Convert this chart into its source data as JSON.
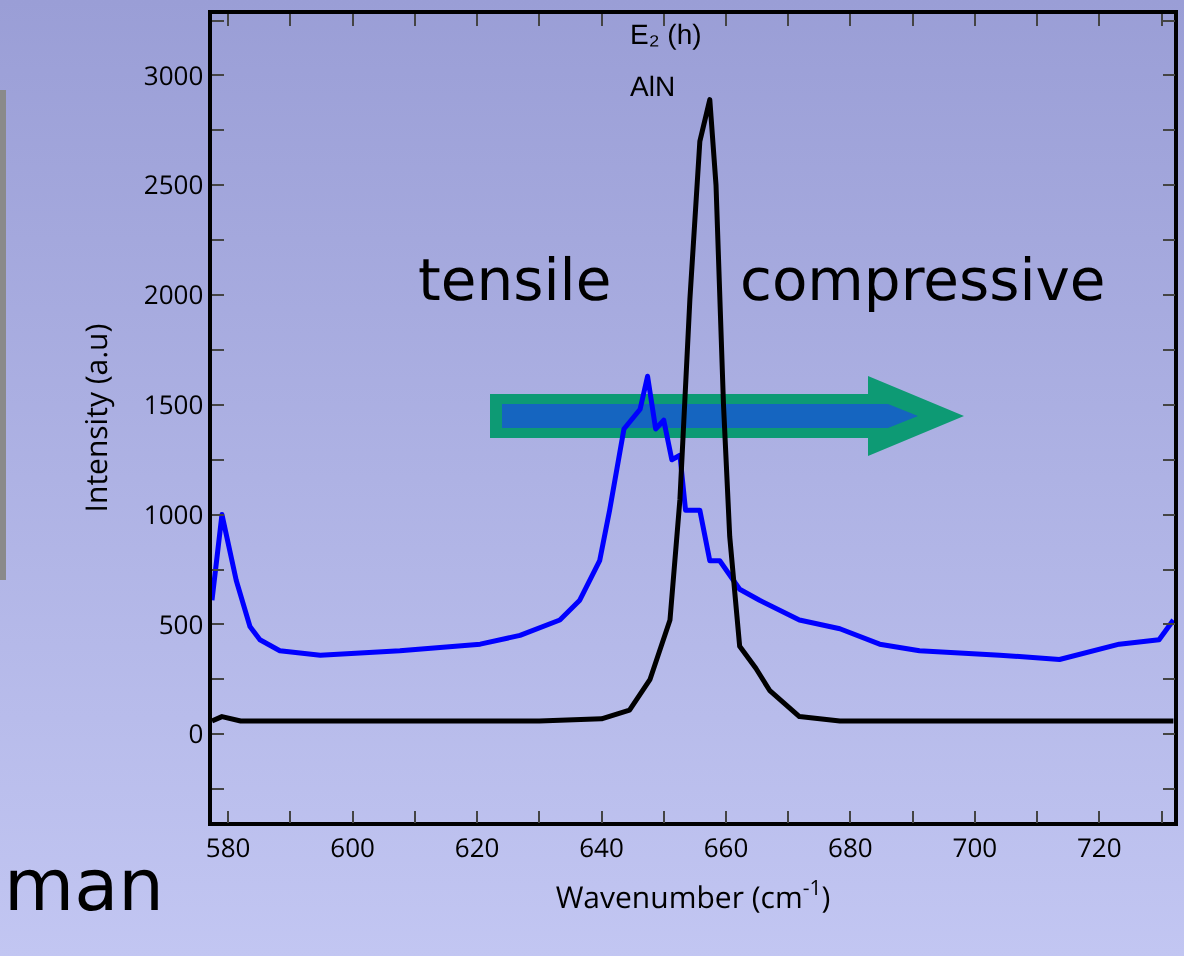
{
  "chart_data": {
    "type": "line",
    "xlabel": "Wavenumber (cm$^{-1}$)",
    "ylabel": "Intensity (a.u)",
    "xlim": [
      577.4,
      732
    ],
    "ylim": [
      -400,
      3280
    ],
    "xticks": [
      580,
      {
        "value": 590,
        "label": null
      },
      600,
      {
        "value": 610,
        "label": null
      },
      620,
      {
        "value": 630,
        "label": null
      },
      640,
      {
        "value": 650,
        "label": null
      },
      660,
      {
        "value": 670,
        "label": null
      },
      680,
      {
        "value": 690,
        "label": null
      },
      700,
      {
        "value": 710,
        "label": null
      },
      720,
      {
        "value": 730,
        "label": null
      }
    ],
    "yticks": [
      {
        "value": -250,
        "label": null
      },
      0,
      {
        "value": 250,
        "label": null
      },
      500,
      {
        "value": 750,
        "label": null
      },
      1000,
      {
        "value": 1250,
        "label": null
      },
      1500,
      {
        "value": 1750,
        "label": null
      },
      2000,
      {
        "value": 2250,
        "label": null
      },
      2500,
      {
        "value": 2750,
        "label": null
      },
      3000,
      {
        "value": 3250,
        "label": null
      }
    ],
    "grid": false,
    "marker": "none",
    "line_style": "solid",
    "series": [
      {
        "color": "#0000ff",
        "x": [
          577.4,
          579.0,
          581.3,
          583.5,
          585.1,
          588.3,
          594.8,
          607.6,
          620.5,
          626.9,
          633.3,
          636.5,
          639.7,
          641.3,
          643.6,
          646.2,
          647.4,
          648.7,
          650.0,
          651.3,
          652.6,
          653.5,
          655.8,
          657.4,
          659.0,
          662.2,
          665.4,
          671.8,
          678.3,
          684.7,
          691.1,
          704.0,
          713.6,
          723.2,
          729.6,
          731.9
        ],
        "values": [
          610,
          1000,
          700,
          490,
          430,
          380,
          360,
          380,
          410,
          450,
          520,
          610,
          790,
          1020,
          1390,
          1480,
          1630,
          1390,
          1430,
          1250,
          1270,
          1020,
          1020,
          790,
          790,
          660,
          610,
          520,
          480,
          410,
          380,
          360,
          340,
          410,
          430,
          520
        ]
      },
      {
        "color": "#000000",
        "x": [
          577.4,
          579.0,
          582,
          590,
          610,
          630,
          640,
          644.5,
          647.8,
          651,
          652.6,
          654.2,
          655.8,
          657.4,
          658.4,
          659.6,
          660.6,
          662.2,
          664.8,
          667,
          671.8,
          678.3,
          700,
          731.9
        ],
        "values": [
          60,
          80,
          60,
          60,
          60,
          60,
          70,
          110,
          250,
          520,
          1070,
          1980,
          2700,
          2890,
          2500,
          1500,
          900,
          400,
          300,
          200,
          80,
          60,
          60,
          60
        ]
      }
    ],
    "annotations": [
      "E₂ (h)",
      "AlN",
      "tensile",
      "compressive",
      "man"
    ]
  }
}
